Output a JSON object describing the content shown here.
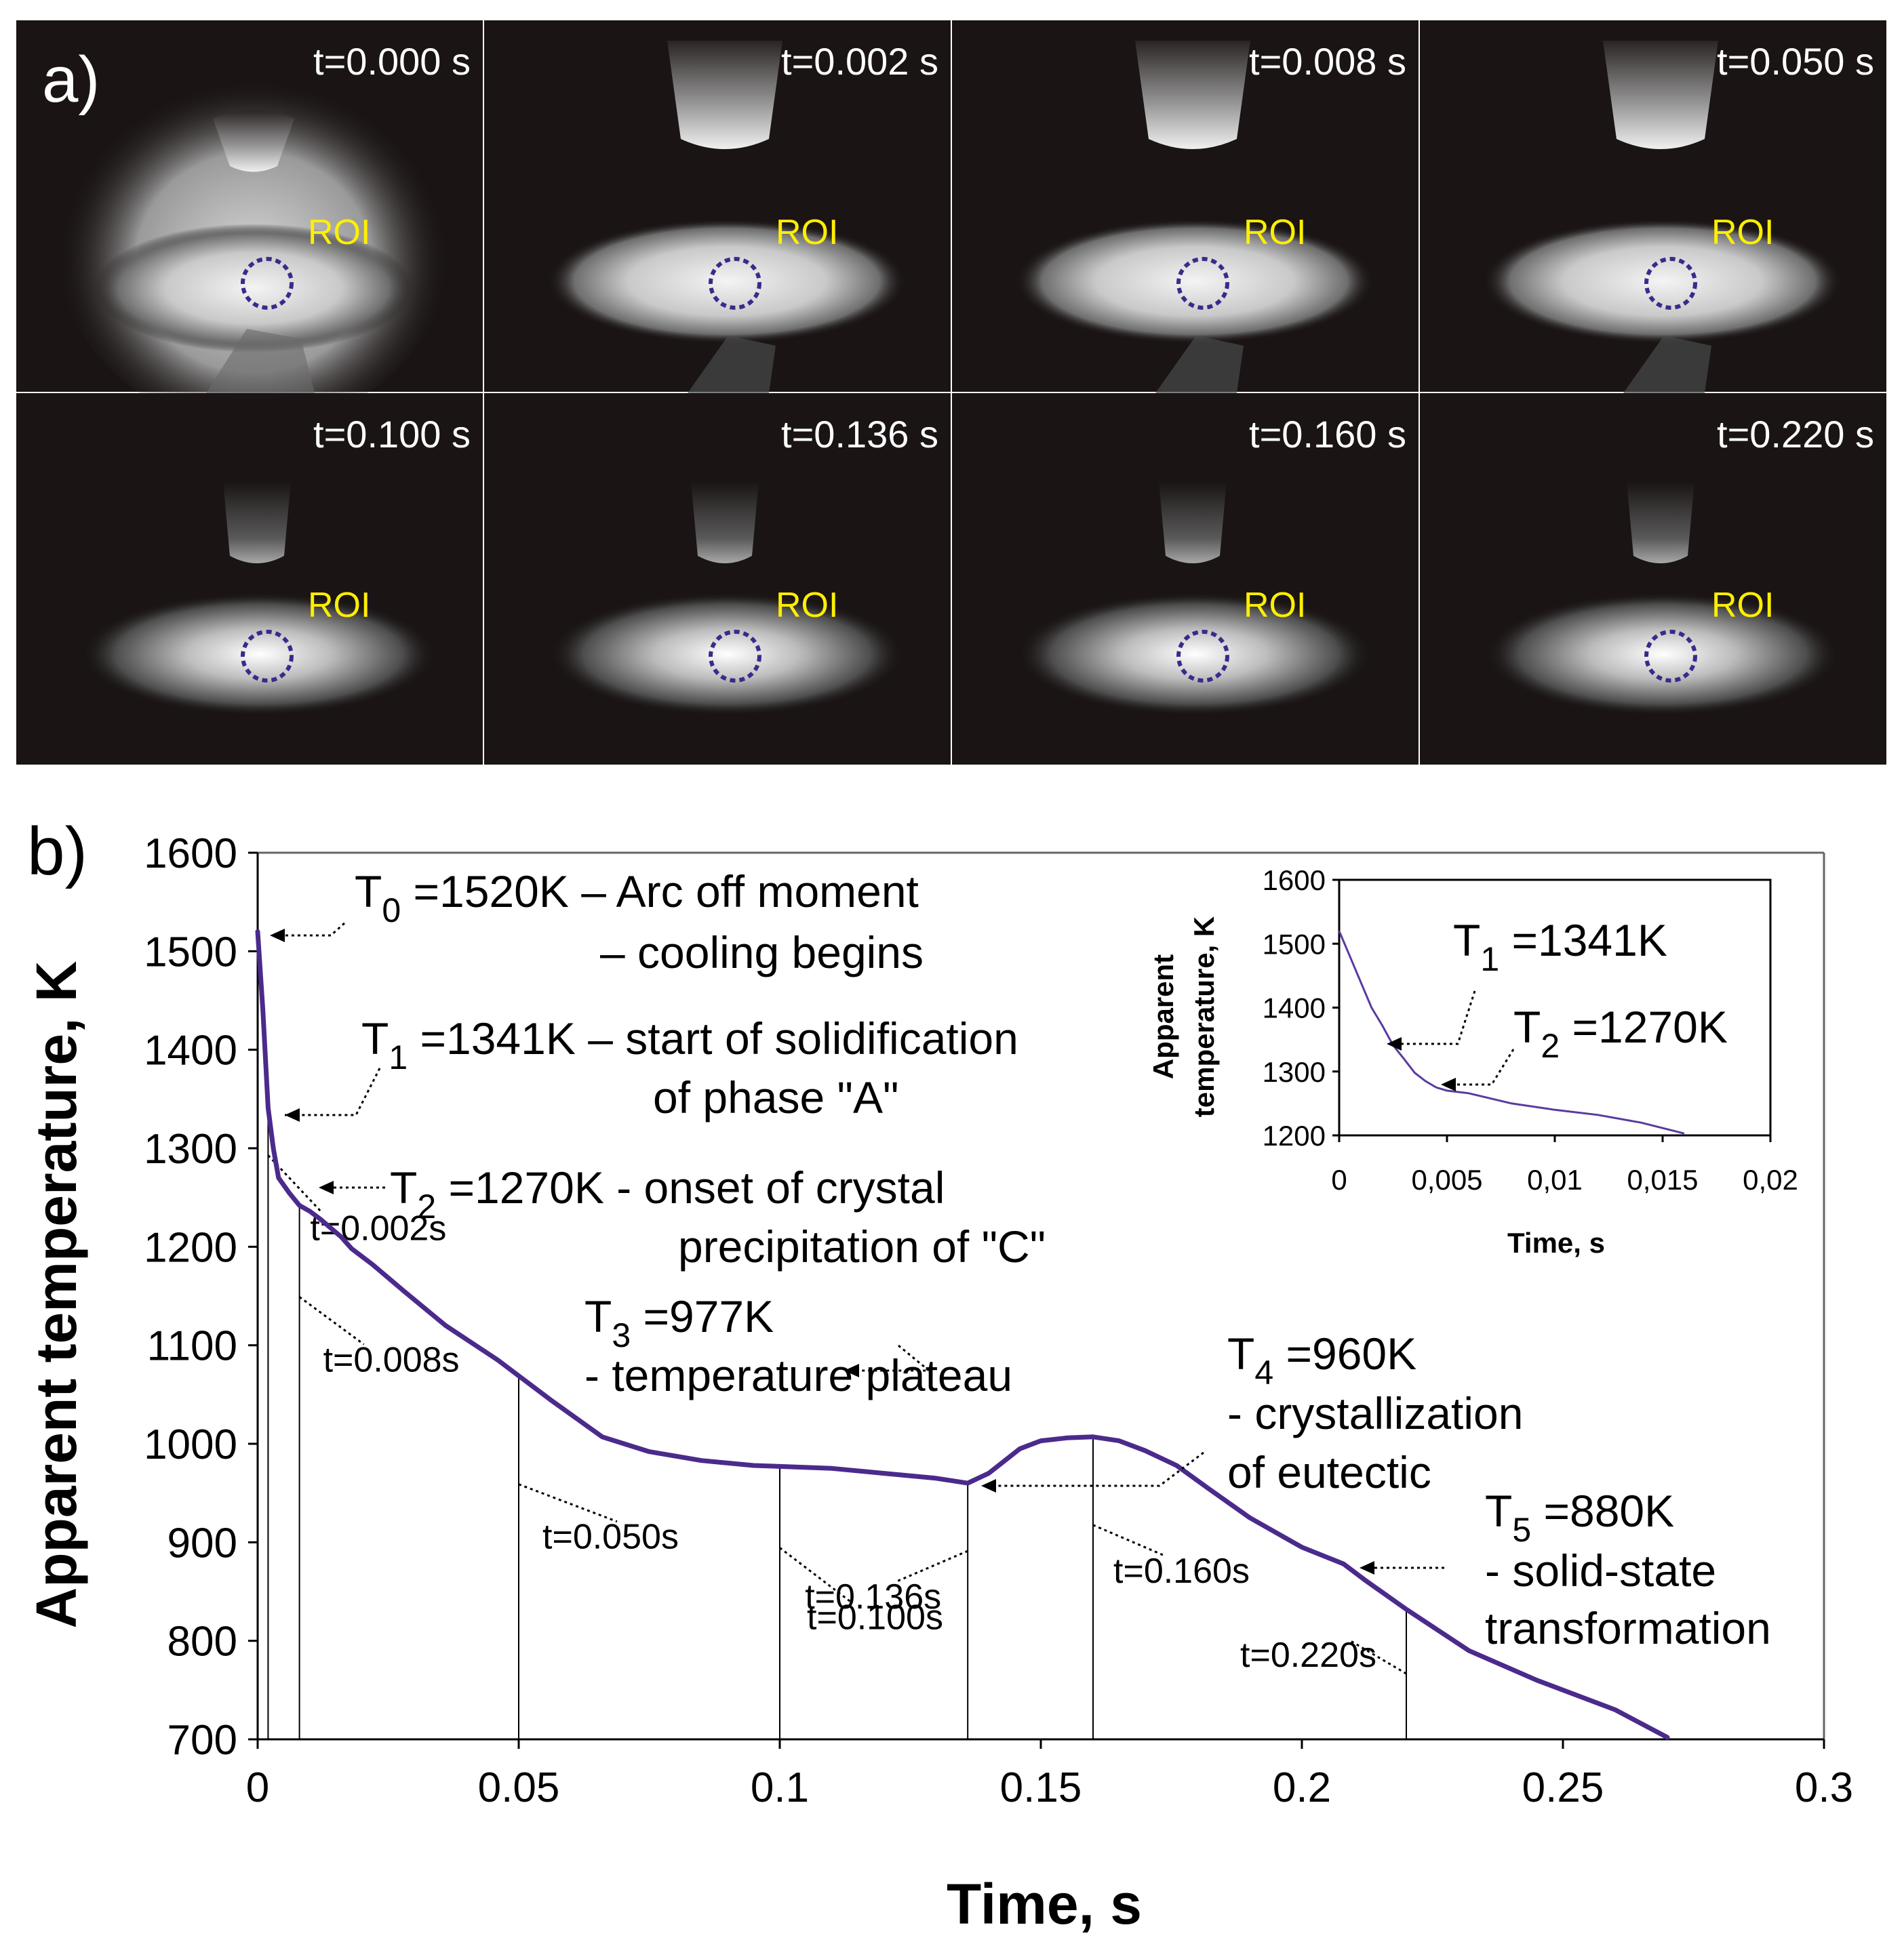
{
  "panel_a": {
    "label": "a)",
    "roi_label": "ROI",
    "frames": [
      {
        "time": "t=0.000 s"
      },
      {
        "time": "t=0.002 s"
      },
      {
        "time": "t=0.008 s"
      },
      {
        "time": "t=0.050 s"
      },
      {
        "time": "t=0.100 s"
      },
      {
        "time": "t=0.136 s"
      },
      {
        "time": "t=0.160 s"
      },
      {
        "time": "t=0.220 s"
      }
    ]
  },
  "chart_data": [
    {
      "id": "main",
      "panel_label": "b)",
      "type": "line",
      "xlabel": "Time, s",
      "ylabel": "Apparent temperature, K",
      "xlim": [
        0,
        0.3
      ],
      "ylim": [
        700,
        1600
      ],
      "x_ticks": [
        "0",
        "0.05",
        "0.1",
        "0.15",
        "0.2",
        "0.25",
        "0.3"
      ],
      "y_ticks": [
        "700",
        "800",
        "900",
        "1000",
        "1100",
        "1200",
        "1300",
        "1400",
        "1500",
        "1600"
      ],
      "series": [
        {
          "name": "Apparent temperature",
          "color": "#4b2a8c",
          "x": [
            0,
            0.001,
            0.002,
            0.003,
            0.004,
            0.006,
            0.008,
            0.01,
            0.012,
            0.016,
            0.018,
            0.022,
            0.028,
            0.036,
            0.046,
            0.056,
            0.066,
            0.075,
            0.085,
            0.095,
            0.1,
            0.11,
            0.12,
            0.13,
            0.136,
            0.14,
            0.146,
            0.15,
            0.155,
            0.16,
            0.165,
            0.17,
            0.176,
            0.182,
            0.19,
            0.2,
            0.208,
            0.212,
            0.22,
            0.232,
            0.245,
            0.26,
            0.27
          ],
          "y": [
            1520,
            1440,
            1341,
            1300,
            1270,
            1255,
            1242,
            1236,
            1228,
            1210,
            1198,
            1182,
            1155,
            1120,
            1085,
            1045,
            1007,
            992,
            983,
            978,
            977,
            975,
            970,
            965,
            960,
            970,
            995,
            1003,
            1006,
            1007,
            1003,
            993,
            978,
            955,
            925,
            895,
            878,
            862,
            832,
            790,
            760,
            730,
            702
          ]
        }
      ],
      "markers": [
        {
          "x": 0.002,
          "label": "t=0.002s"
        },
        {
          "x": 0.008,
          "label": "t=0.008s"
        },
        {
          "x": 0.05,
          "label": "t=0.050s"
        },
        {
          "x": 0.1,
          "label": "t=0.100s"
        },
        {
          "x": 0.136,
          "label": "t=0.136s"
        },
        {
          "x": 0.16,
          "label": "t=0.160s"
        },
        {
          "x": 0.22,
          "label": "t=0.220s"
        }
      ],
      "annotations": {
        "t0": {
          "sub": "0",
          "line1": " =1520K – Arc off moment",
          "line2": "– cooling begins"
        },
        "t1": {
          "sub": "1",
          "line1": " =1341K – start of solidification",
          "line2": "of phase \"A\""
        },
        "t2": {
          "sub": "2",
          "line1": " =1270K - onset of crystal",
          "line2": "precipitation of \"C\""
        },
        "t3": {
          "sub": "3",
          "line1": " =977K",
          "line2": "- temperature plateau"
        },
        "t4": {
          "sub": "4",
          "line1": " =960K",
          "line2": "- crystallization",
          "line3": "of eutectic"
        },
        "t5": {
          "sub": "5",
          "line1": " =880K",
          "line2": "- solid-state",
          "line3": "transformation"
        }
      }
    },
    {
      "id": "inset",
      "type": "line",
      "xlabel": "Time, s",
      "ylabel_line1": "Apparent",
      "ylabel_line2": "temperature, K",
      "xlim": [
        0,
        0.02
      ],
      "ylim": [
        1200,
        1600
      ],
      "x_ticks": [
        "0",
        "0,005",
        "0,01",
        "0,015",
        "0,02"
      ],
      "y_ticks": [
        "1200",
        "1300",
        "1400",
        "1500",
        "1600"
      ],
      "series": [
        {
          "name": "Apparent temperature",
          "color": "#5a3aa0",
          "x": [
            0,
            0.0005,
            0.001,
            0.0015,
            0.002,
            0.0025,
            0.003,
            0.0035,
            0.004,
            0.0045,
            0.005,
            0.006,
            0.008,
            0.01,
            0.012,
            0.014,
            0.016
          ],
          "y": [
            1520,
            1480,
            1440,
            1400,
            1372,
            1341,
            1320,
            1298,
            1285,
            1275,
            1270,
            1266,
            1250,
            1240,
            1232,
            1220,
            1203
          ]
        }
      ],
      "annotations": {
        "t1": {
          "sub": "1",
          "line1": " =1341K"
        },
        "t2": {
          "sub": "2",
          "line1": " =1270K"
        }
      }
    }
  ]
}
